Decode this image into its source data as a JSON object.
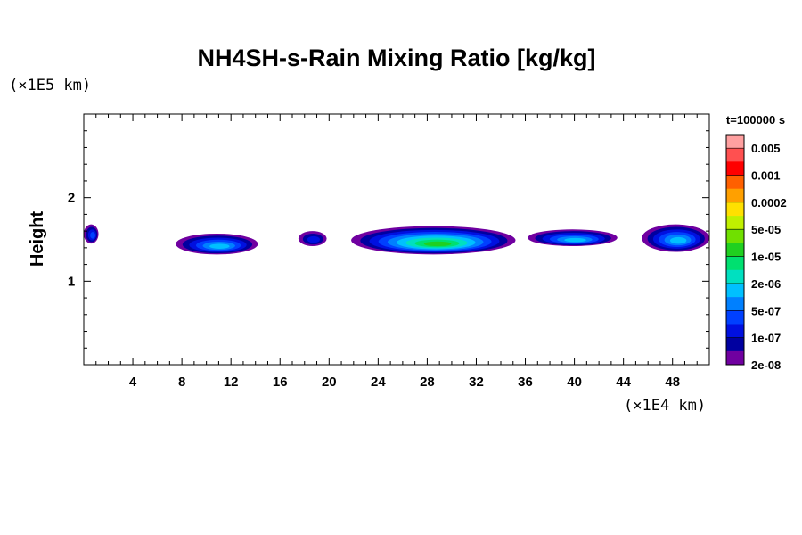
{
  "chart_data": {
    "type": "heatmap",
    "title": "NH4SH-s-Rain Mixing Ratio [kg/kg]",
    "ylabel": "Height",
    "xunit": "(×1E4 km)",
    "yunit": "(×1E5 km)",
    "xlim": [
      0,
      51
    ],
    "ylim": [
      0,
      3
    ],
    "xticks": [
      4,
      8,
      12,
      16,
      20,
      24,
      28,
      32,
      36,
      40,
      44,
      48
    ],
    "yticks": [
      1,
      2
    ],
    "time_label": "t=100000 s",
    "colorbar": {
      "labels": [
        "0.005",
        "0.001",
        "0.0002",
        "5e-05",
        "1e-05",
        "2e-06",
        "5e-07",
        "1e-07",
        "2e-08"
      ],
      "colors": [
        "#ffa0a0",
        "#ff5050",
        "#ff0000",
        "#ff6000",
        "#ffa000",
        "#ffe000",
        "#c0f000",
        "#70e000",
        "#20d020",
        "#00e070",
        "#00e0c0",
        "#00c0ff",
        "#0080ff",
        "#0040ff",
        "#0010e0",
        "#0000a0",
        "#7000a0"
      ]
    },
    "cells": [
      {
        "x0": 0,
        "x1": 1.2,
        "y0": 1.45,
        "y1": 1.68,
        "level": 2
      },
      {
        "x0": 7.5,
        "x1": 14.2,
        "y0": 1.32,
        "y1": 1.57,
        "level": 4
      },
      {
        "x0": 17.5,
        "x1": 19.8,
        "y0": 1.42,
        "y1": 1.6,
        "level": 1
      },
      {
        "x0": 21.8,
        "x1": 35.2,
        "y0": 1.32,
        "y1": 1.66,
        "level": 7
      },
      {
        "x0": 36.2,
        "x1": 43.5,
        "y0": 1.42,
        "y1": 1.62,
        "level": 4
      },
      {
        "x0": 45.5,
        "x1": 51,
        "y0": 1.35,
        "y1": 1.68,
        "level": 4
      }
    ]
  }
}
